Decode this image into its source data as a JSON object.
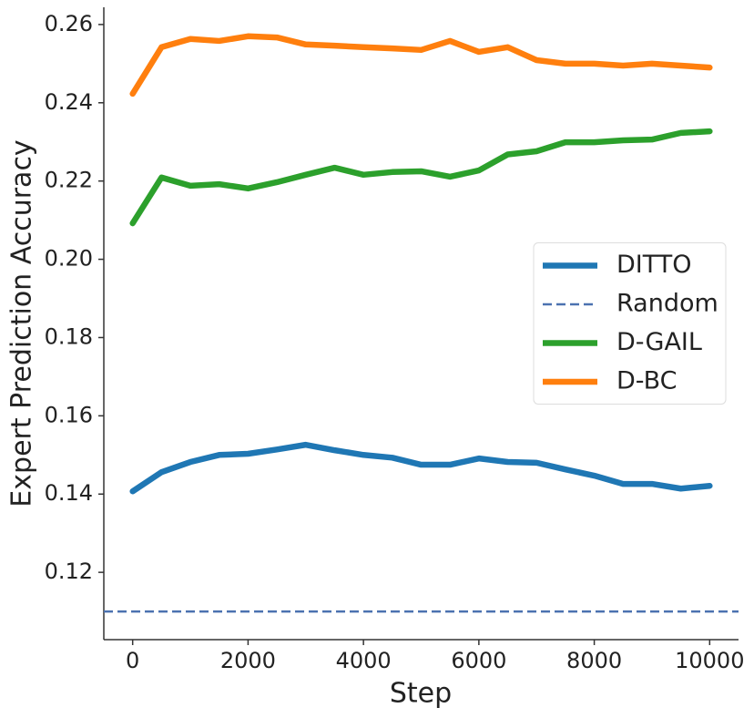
{
  "chart_data": {
    "type": "line",
    "xlabel": "Step",
    "ylabel": "Expert Prediction Accuracy",
    "x": [
      0,
      500,
      1000,
      1500,
      2000,
      2500,
      3000,
      3500,
      4000,
      4500,
      5000,
      5500,
      6000,
      6500,
      7000,
      7500,
      8000,
      8500,
      9000,
      9500,
      10000
    ],
    "series": [
      {
        "name": "DITTO",
        "color": "#1f77b4",
        "values": [
          0.1407,
          0.1456,
          0.1482,
          0.15,
          0.1503,
          0.1514,
          0.1526,
          0.1512,
          0.15,
          0.1493,
          0.1475,
          0.1475,
          0.1491,
          0.1482,
          0.148,
          0.1463,
          0.1447,
          0.1426,
          0.1426,
          0.1414,
          0.1421
        ]
      },
      {
        "name": "Random",
        "color": "#4c72b0",
        "style": "dashed",
        "y": 0.11
      },
      {
        "name": "D-GAIL",
        "color": "#2ca02c",
        "values": [
          0.2092,
          0.2209,
          0.2188,
          0.2192,
          0.2181,
          0.2197,
          0.2216,
          0.2234,
          0.2216,
          0.2223,
          0.2225,
          0.2211,
          0.2227,
          0.2268,
          0.2276,
          0.2299,
          0.2299,
          0.2304,
          0.2306,
          0.2323,
          0.2327
        ]
      },
      {
        "name": "D-BC",
        "color": "#ff7f0e",
        "values": [
          0.2423,
          0.2542,
          0.2563,
          0.2558,
          0.257,
          0.2567,
          0.2549,
          0.2546,
          0.2542,
          0.2539,
          0.2535,
          0.2558,
          0.253,
          0.2542,
          0.2509,
          0.25,
          0.25,
          0.2495,
          0.25,
          0.2495,
          0.249
        ]
      }
    ],
    "xlim": [
      -500,
      10500
    ],
    "xticks": [
      0,
      2000,
      4000,
      6000,
      8000,
      10000
    ],
    "ylim": [
      0.1028,
      0.2644
    ],
    "yticks": [
      0.12,
      0.14,
      0.16,
      0.18,
      {
        "value": 0.2,
        "label": "0.20"
      },
      0.22,
      0.24,
      0.26
    ],
    "legend": "center right",
    "grid": false
  }
}
